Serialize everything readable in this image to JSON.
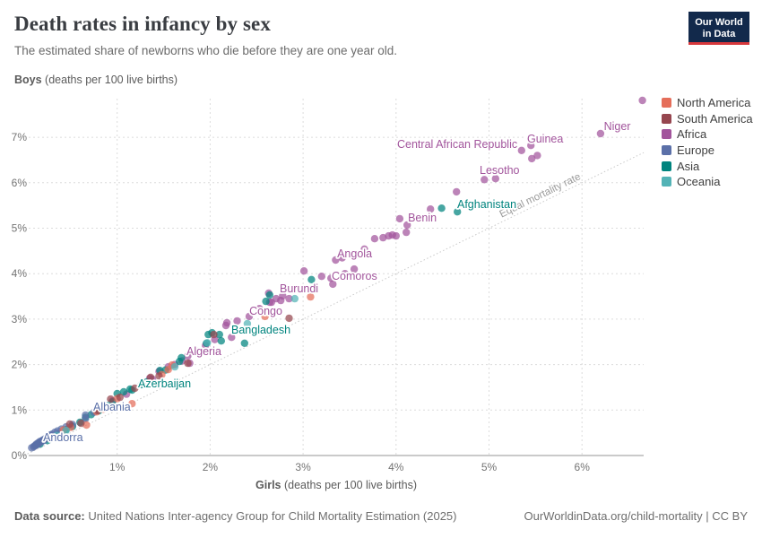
{
  "header": {
    "title": "Death rates in infancy by sex",
    "subtitle": "The estimated share of newborns who die before they are one year old.",
    "logo_line1": "Our World",
    "logo_line2": "in Data"
  },
  "axes": {
    "y_bold": "Boys",
    "y_rest": " (deaths per 100 live births)",
    "x_bold": "Girls",
    "x_rest": " (deaths per 100 live births)"
  },
  "colors": {
    "north_america": "#e56e5a",
    "south_america": "#96464f",
    "africa": "#a2559c",
    "europe": "#5b70a8",
    "asia": "#00847e",
    "oceania": "#53b3b6"
  },
  "legend": {
    "items": [
      {
        "label": "North America",
        "key": "north_america"
      },
      {
        "label": "South America",
        "key": "south_america"
      },
      {
        "label": "Africa",
        "key": "africa"
      },
      {
        "label": "Europe",
        "key": "europe"
      },
      {
        "label": "Asia",
        "key": "asia"
      },
      {
        "label": "Oceania",
        "key": "oceania"
      }
    ]
  },
  "chart_data": {
    "type": "scatter",
    "title": "Death rates in infancy by sex",
    "xlabel": "Girls (deaths per 100 live births)",
    "ylabel": "Boys (deaths per 100 live births)",
    "xlim": [
      0,
      6.8
    ],
    "ylim": [
      0,
      7.9
    ],
    "grid": "dashed",
    "legend_position": "right",
    "equal_line_label": "Equal mortality rate",
    "x_ticks": [
      {
        "v": 1,
        "t": "1%"
      },
      {
        "v": 2,
        "t": "2%"
      },
      {
        "v": 3,
        "t": "3%"
      },
      {
        "v": 4,
        "t": "4%"
      },
      {
        "v": 5,
        "t": "5%"
      },
      {
        "v": 6,
        "t": "6%"
      }
    ],
    "y_ticks": [
      {
        "v": 0,
        "t": "0%"
      },
      {
        "v": 1,
        "t": "1%"
      },
      {
        "v": 2,
        "t": "2%"
      },
      {
        "v": 3,
        "t": "3%"
      },
      {
        "v": 4,
        "t": "4%"
      },
      {
        "v": 5,
        "t": "5%"
      },
      {
        "v": 6,
        "t": "6%"
      },
      {
        "v": 7,
        "t": "7%"
      }
    ],
    "series": [
      {
        "name": "Africa",
        "key": "africa",
        "points": [
          [
            0.95,
            1.2
          ],
          [
            1.1,
            1.35
          ],
          [
            1.35,
            1.7
          ],
          [
            1.38,
            1.68
          ],
          [
            1.45,
            1.85
          ],
          [
            1.55,
            1.95
          ],
          [
            1.62,
            2.0
          ],
          [
            1.7,
            2.08
          ],
          [
            1.76,
            2.19
          ],
          [
            1.78,
            2.03
          ],
          [
            1.85,
            2.3
          ],
          [
            1.95,
            2.42
          ],
          [
            2.05,
            2.55
          ],
          [
            2.17,
            2.86
          ],
          [
            2.18,
            2.92
          ],
          [
            2.23,
            2.6
          ],
          [
            2.29,
            2.96
          ],
          [
            2.42,
            3.06
          ],
          [
            2.53,
            3.23
          ],
          [
            2.63,
            3.57
          ],
          [
            2.64,
            3.37
          ],
          [
            2.66,
            3.37
          ],
          [
            2.71,
            3.45
          ],
          [
            2.76,
            3.41
          ],
          [
            2.78,
            3.51
          ],
          [
            2.85,
            3.45
          ],
          [
            3.01,
            4.06
          ],
          [
            3.2,
            3.94
          ],
          [
            3.3,
            3.9
          ],
          [
            3.32,
            3.77
          ],
          [
            3.35,
            4.3
          ],
          [
            3.42,
            4.35
          ],
          [
            3.45,
            4.0
          ],
          [
            3.55,
            4.1
          ],
          [
            3.66,
            4.54
          ],
          [
            3.77,
            4.77
          ],
          [
            3.86,
            4.79
          ],
          [
            3.92,
            4.83
          ],
          [
            3.96,
            4.85
          ],
          [
            4.0,
            4.83
          ],
          [
            4.04,
            5.21
          ],
          [
            4.11,
            4.91
          ],
          [
            4.12,
            5.07
          ],
          [
            4.37,
            5.42
          ],
          [
            4.65,
            5.8
          ],
          [
            4.95,
            6.07
          ],
          [
            5.07,
            6.09
          ],
          [
            5.35,
            6.71
          ],
          [
            5.45,
            6.82
          ],
          [
            5.46,
            6.53
          ],
          [
            5.52,
            6.6
          ],
          [
            6.2,
            7.08
          ],
          [
            6.65,
            7.81
          ]
        ]
      },
      {
        "name": "Asia",
        "key": "asia",
        "points": [
          [
            0.17,
            0.25
          ],
          [
            0.25,
            0.33
          ],
          [
            0.3,
            0.4
          ],
          [
            0.37,
            0.47
          ],
          [
            0.45,
            0.57
          ],
          [
            0.52,
            0.64
          ],
          [
            0.6,
            0.73
          ],
          [
            0.66,
            0.84
          ],
          [
            0.72,
            0.9
          ],
          [
            0.8,
            0.98
          ],
          [
            0.88,
            1.08
          ],
          [
            0.95,
            1.18
          ],
          [
            1.0,
            1.36
          ],
          [
            1.07,
            1.4
          ],
          [
            1.14,
            1.46
          ],
          [
            1.16,
            1.44
          ],
          [
            1.26,
            1.56
          ],
          [
            1.32,
            1.62
          ],
          [
            1.46,
            1.87
          ],
          [
            1.52,
            1.88
          ],
          [
            1.67,
            2.07
          ],
          [
            1.69,
            2.15
          ],
          [
            1.96,
            2.47
          ],
          [
            1.98,
            2.66
          ],
          [
            2.02,
            2.7
          ],
          [
            2.1,
            2.66
          ],
          [
            2.12,
            2.52
          ],
          [
            2.37,
            2.47
          ],
          [
            2.6,
            3.39
          ],
          [
            2.64,
            3.53
          ],
          [
            3.09,
            3.87
          ],
          [
            4.49,
            5.44
          ],
          [
            4.66,
            5.36
          ]
        ]
      },
      {
        "name": "Europe",
        "key": "europe",
        "points": [
          [
            0.08,
            0.17
          ],
          [
            0.1,
            0.19
          ],
          [
            0.11,
            0.21
          ],
          [
            0.12,
            0.22
          ],
          [
            0.13,
            0.23
          ],
          [
            0.13,
            0.25
          ],
          [
            0.14,
            0.24
          ],
          [
            0.15,
            0.26
          ],
          [
            0.15,
            0.28
          ],
          [
            0.16,
            0.27
          ],
          [
            0.17,
            0.29
          ],
          [
            0.17,
            0.31
          ],
          [
            0.18,
            0.3
          ],
          [
            0.19,
            0.32
          ],
          [
            0.2,
            0.34
          ],
          [
            0.21,
            0.33
          ],
          [
            0.22,
            0.36
          ],
          [
            0.23,
            0.37
          ],
          [
            0.24,
            0.39
          ],
          [
            0.25,
            0.41
          ],
          [
            0.27,
            0.43
          ],
          [
            0.28,
            0.45
          ],
          [
            0.3,
            0.47
          ],
          [
            0.33,
            0.51
          ],
          [
            0.36,
            0.54
          ],
          [
            0.4,
            0.58
          ],
          [
            0.45,
            0.63
          ],
          [
            0.52,
            0.68
          ],
          [
            0.66,
            0.81
          ],
          [
            0.66,
            0.89
          ],
          [
            0.75,
            0.95
          ]
        ]
      },
      {
        "name": "North America",
        "key": "north_america",
        "points": [
          [
            0.42,
            0.56
          ],
          [
            0.5,
            0.62
          ],
          [
            0.67,
            0.67
          ],
          [
            0.78,
            0.96
          ],
          [
            0.85,
            1.02
          ],
          [
            1.0,
            1.25
          ],
          [
            1.16,
            1.14
          ],
          [
            1.3,
            1.58
          ],
          [
            1.48,
            1.78
          ],
          [
            1.55,
            1.89
          ],
          [
            1.59,
            1.99
          ],
          [
            2.59,
            3.06
          ],
          [
            3.08,
            3.49
          ]
        ]
      },
      {
        "name": "South America",
        "key": "south_america",
        "points": [
          [
            0.49,
            0.69
          ],
          [
            0.61,
            0.71
          ],
          [
            0.79,
            0.99
          ],
          [
            0.93,
            1.24
          ],
          [
            1.03,
            1.28
          ],
          [
            1.19,
            1.48
          ],
          [
            1.36,
            1.72
          ],
          [
            1.45,
            1.75
          ],
          [
            1.76,
            2.03
          ],
          [
            2.04,
            2.66
          ],
          [
            2.85,
            3.02
          ]
        ]
      },
      {
        "name": "Oceania",
        "key": "oceania",
        "points": [
          [
            0.35,
            0.44
          ],
          [
            0.45,
            0.55
          ],
          [
            0.9,
            1.1
          ],
          [
            1.3,
            1.6
          ],
          [
            1.62,
            1.95
          ],
          [
            1.97,
            2.48
          ],
          [
            2.4,
            2.9
          ],
          [
            2.91,
            3.45
          ]
        ]
      }
    ],
    "point_labels": [
      {
        "text": "Andorra",
        "key": "europe",
        "x": 0.203,
        "y": 0.316
      },
      {
        "text": "Albania",
        "key": "europe",
        "x": 0.743,
        "y": 0.986
      },
      {
        "text": "Azerbaijan",
        "key": "asia",
        "x": 1.225,
        "y": 1.499
      },
      {
        "text": "Algeria",
        "key": "africa",
        "x": 1.745,
        "y": 2.209
      },
      {
        "text": "Bangladesh",
        "key": "asia",
        "x": 2.228,
        "y": 2.682
      },
      {
        "text": "Congo",
        "key": "africa",
        "x": 2.421,
        "y": 3.097
      },
      {
        "text": "Burundi",
        "key": "africa",
        "x": 2.748,
        "y": 3.59
      },
      {
        "text": "Comoros",
        "key": "africa",
        "x": 3.308,
        "y": 3.866
      },
      {
        "text": "Angola",
        "key": "africa",
        "x": 3.366,
        "y": 4.359
      },
      {
        "text": "Benin",
        "key": "africa",
        "x": 4.128,
        "y": 5.148
      },
      {
        "text": "Afghanistan",
        "key": "asia",
        "x": 4.658,
        "y": 5.444
      },
      {
        "text": "Lesotho",
        "key": "africa",
        "x": 4.899,
        "y": 6.193
      },
      {
        "text": "Central African Republic",
        "key": "africa",
        "x": 4.012,
        "y": 6.765
      },
      {
        "text": "Guinea",
        "key": "africa",
        "x": 5.41,
        "y": 6.883
      },
      {
        "text": "Niger",
        "key": "africa",
        "x": 6.235,
        "y": 7.16
      }
    ]
  },
  "footer": {
    "source_bold": "Data source:",
    "source_rest": " United Nations Inter-agency Group for Child Mortality Estimation (2025)",
    "right": "OurWorldinData.org/child-mortality | CC BY"
  }
}
